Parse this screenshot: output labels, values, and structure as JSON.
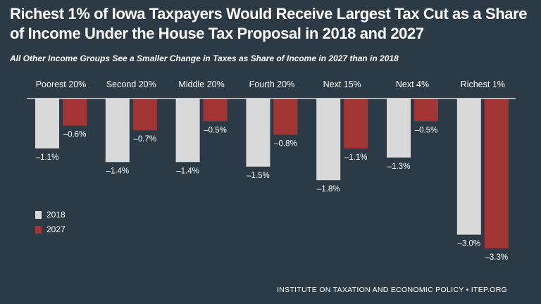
{
  "header": {
    "title": "Richest 1% of Iowa Taxpayers Would Receive Largest Tax Cut as a Share of Income Under the House Tax Proposal in 2018 and 2027",
    "subtitle": "All Other Income Groups See a Smaller Change in Taxes as Share of Income in 2027 than in 2018"
  },
  "footer": {
    "source": "INSTITUTE ON TAXATION AND ECONOMIC POLICY • ITEP.ORG"
  },
  "colors": {
    "background": "#2b3a45",
    "series_2018": "#d9d9d9",
    "series_2027": "#a33434",
    "text": "#ffffff",
    "baseline": "#ffffff"
  },
  "chart_data": {
    "type": "bar",
    "categories": [
      "Poorest 20%",
      "Second 20%",
      "Middle 20%",
      "Fourth 20%",
      "Next 15%",
      "Next 4%",
      "Richest 1%"
    ],
    "series": [
      {
        "name": "2018",
        "values": [
          -1.1,
          -1.4,
          -1.4,
          -1.5,
          -1.8,
          -1.3,
          -3.0
        ],
        "labels": [
          "–1.1%",
          "–1.4%",
          "–1.4%",
          "–1.5%",
          "–1.8%",
          "–1.3%",
          "–3.0%"
        ]
      },
      {
        "name": "2027",
        "values": [
          -0.6,
          -0.7,
          -0.5,
          -0.8,
          -1.1,
          -0.5,
          -3.3
        ],
        "labels": [
          "–0.6%",
          "–0.7%",
          "–0.5%",
          "–0.8%",
          "–1.1%",
          "–0.5%",
          "–3.3%"
        ]
      }
    ],
    "ylim": [
      -3.3,
      0
    ],
    "legend": "left",
    "grid": false
  }
}
